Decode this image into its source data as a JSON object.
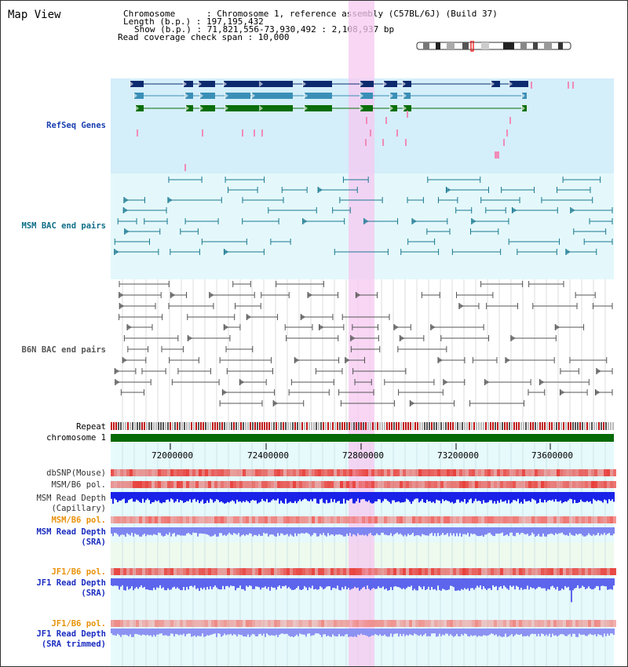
{
  "page_title": "Map View",
  "header": {
    "line1": "Chromosome      : Chromosome 1, reference assembly (C57BL/6J) (Build 37)",
    "line2": "Length (b.p.) : 197,195,432",
    "line3": "Show (b.p.) : 71,821,556-73,930,492 : 2,108,937 bp",
    "line4": "Read coverage check span : 10,000"
  },
  "track_labels": {
    "refseq": "RefSeq Genes",
    "msm_bac": "MSM BAC end pairs",
    "b6n_bac": "B6N BAC end pairs",
    "repeat": "Repeat",
    "chromosome": "chromosome 1",
    "dbsnp": "dbSNP(Mouse)",
    "msm_b6_pol_1": "MSM/B6 pol.",
    "msm_read_depth_cap_1": "MSM Read Depth",
    "msm_read_depth_cap_2": "(Capillary)",
    "msm_b6_pol_2": "MSM/B6 pol.",
    "msm_read_depth_sra_1": "MSM Read Depth",
    "msm_read_depth_sra_2": "(SRA)",
    "jf1_b6_pol_1": "JF1/B6 pol.",
    "jf1_read_depth_sra_1": "JF1 Read Depth",
    "jf1_read_depth_sra_2": "(SRA)",
    "jf1_b6_pol_2": "JF1/B6 pol.",
    "jf1_read_depth_trim_1": "JF1 Read Depth",
    "jf1_read_depth_trim_2": "(SRA trimmed)"
  },
  "axis_ticks": [
    "72000000",
    "72400000",
    "72800000",
    "73200000",
    "73600000"
  ],
  "colors": {
    "gene_navy": "#0d2a6e",
    "gene_steel": "#3a8fb7",
    "gene_green": "#0a6e0a",
    "msm_teal": "#1a7890",
    "b6n_gray": "#555555",
    "highlight_pink": "#f5c8f0",
    "refseq_bg": "#d4eefa",
    "msm_bg": "#e4f8fb",
    "lower_bg": "#e6fafc",
    "chromosome_green": "#066a06",
    "pol_red": "#e8413c",
    "depth_blue": "#1a22e8",
    "depth_lightblue": "#7e86f0"
  }
}
